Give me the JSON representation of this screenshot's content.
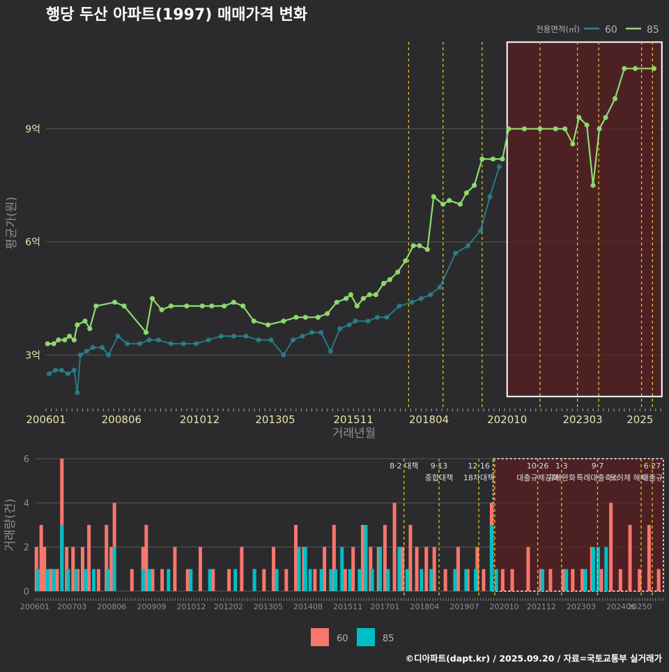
{
  "title": "행당 두산 아파트(1997) 매매가격 변화",
  "footer": "©디아파트(dapt.kr) / 2025.09.20 / 자료=국토교통부 실거래가",
  "colors": {
    "background": "#2b2b2d",
    "series60_line": "#2a8a96",
    "series85_line": "#8fdc6e",
    "bar60": "#f8766d",
    "bar85": "#00bfc4",
    "policy_line": "#e6c619",
    "highlight_fill": "#5a1f22",
    "title_text": "#ffffff",
    "axis_text": "#e8e2b0"
  },
  "chart_data": [
    {
      "type": "line",
      "title": "행당 두산 아파트(1997) 매매가격 변화",
      "xlabel": "거래년월",
      "ylabel": "평균가(원)",
      "x_ticks": [
        "200601",
        "200806",
        "201012",
        "201305",
        "201511",
        "201804",
        "202010",
        "202303",
        "2025"
      ],
      "y_ticks": [
        {
          "value": 3,
          "label": "3억"
        },
        {
          "value": 6,
          "label": "6억"
        },
        {
          "value": 9,
          "label": "9억"
        }
      ],
      "ylim": [
        1.6,
        11.4
      ],
      "xlim": [
        2006.0,
        2025.75
      ],
      "grid": true,
      "legend": {
        "title": "전용면적(㎡)",
        "position": "top-right",
        "entries": [
          "60",
          "85"
        ]
      },
      "highlight_range": {
        "x": [
          2020.75,
          2025.7
        ],
        "y": [
          1.9,
          11.3
        ]
      },
      "policy_dates": [
        2017.6,
        2018.7,
        2019.95,
        2021.8,
        2023.0,
        2023.68,
        2025.05,
        2025.4
      ],
      "series": [
        {
          "name": "85",
          "x": [
            2006.05,
            2006.25,
            2006.4,
            2006.6,
            2006.75,
            2006.9,
            2007.0,
            2007.25,
            2007.4,
            2007.6,
            2008.2,
            2008.5,
            2009.2,
            2009.4,
            2009.7,
            2010.0,
            2010.5,
            2011.0,
            2011.3,
            2011.7,
            2012.0,
            2012.3,
            2012.65,
            2013.1,
            2013.6,
            2014.0,
            2014.3,
            2014.7,
            2015.0,
            2015.3,
            2015.6,
            2015.75,
            2015.95,
            2016.15,
            2016.35,
            2016.55,
            2016.8,
            2017.0,
            2017.25,
            2017.5,
            2017.75,
            2017.95,
            2018.2,
            2018.4,
            2018.7,
            2018.9,
            2019.25,
            2019.45,
            2019.7,
            2019.95,
            2020.3,
            2020.6,
            2020.8,
            2021.3,
            2021.8,
            2022.3,
            2022.6,
            2022.85,
            2023.05,
            2023.3,
            2023.5,
            2023.7,
            2023.9,
            2024.2,
            2024.5,
            2024.85,
            2025.45
          ],
          "values": [
            3.3,
            3.3,
            3.4,
            3.4,
            3.5,
            3.4,
            3.8,
            3.9,
            3.7,
            4.3,
            4.4,
            4.3,
            3.6,
            4.5,
            4.2,
            4.3,
            4.3,
            4.3,
            4.3,
            4.3,
            4.4,
            4.3,
            3.9,
            3.8,
            3.9,
            4.0,
            4.0,
            4.0,
            4.1,
            4.4,
            4.5,
            4.6,
            4.3,
            4.5,
            4.6,
            4.6,
            4.9,
            5.0,
            5.2,
            5.5,
            5.9,
            5.9,
            5.8,
            7.2,
            7.0,
            7.1,
            7.0,
            7.3,
            7.5,
            8.2,
            8.2,
            8.2,
            9.0,
            9.0,
            9.0,
            9.0,
            9.0,
            8.6,
            9.3,
            9.1,
            7.5,
            9.0,
            9.3,
            9.8,
            10.6,
            10.6,
            10.6
          ]
        },
        {
          "name": "60",
          "x": [
            2006.1,
            2006.3,
            2006.5,
            2006.7,
            2006.9,
            2007.0,
            2007.1,
            2007.3,
            2007.5,
            2007.8,
            2008.0,
            2008.3,
            2008.6,
            2009.0,
            2009.3,
            2009.6,
            2010.0,
            2010.4,
            2010.8,
            2011.2,
            2011.6,
            2012.0,
            2012.4,
            2012.8,
            2013.2,
            2013.6,
            2013.9,
            2014.2,
            2014.5,
            2014.8,
            2015.1,
            2015.4,
            2015.7,
            2015.9,
            2016.3,
            2016.6,
            2016.9,
            2017.3,
            2017.7,
            2018.0,
            2018.3,
            2018.6,
            2019.1,
            2019.5,
            2019.9,
            2020.2,
            2020.5
          ],
          "values": [
            2.5,
            2.6,
            2.6,
            2.5,
            2.6,
            2.0,
            3.0,
            3.1,
            3.2,
            3.2,
            3.0,
            3.5,
            3.3,
            3.3,
            3.4,
            3.4,
            3.3,
            3.3,
            3.3,
            3.4,
            3.5,
            3.5,
            3.5,
            3.4,
            3.4,
            3.0,
            3.4,
            3.5,
            3.6,
            3.6,
            3.1,
            3.7,
            3.8,
            3.9,
            3.9,
            4.0,
            4.0,
            4.3,
            4.4,
            4.5,
            4.6,
            4.8,
            5.7,
            5.9,
            6.3,
            7.2,
            8.0
          ]
        }
      ]
    },
    {
      "type": "bar",
      "ylabel": "거래량(건)",
      "ylim": [
        0,
        6
      ],
      "y_ticks": [
        0,
        2,
        4,
        6
      ],
      "x_ticks": [
        "200601",
        "200703",
        "200806",
        "200909",
        "201012",
        "201202",
        "201305",
        "201408",
        "201511",
        "201701",
        "201804",
        "201907",
        "202010",
        "202112",
        "202303",
        "202406",
        "20250"
      ],
      "legend": {
        "position": "bottom",
        "entries": [
          "60",
          "85"
        ]
      },
      "highlight_range": {
        "x": [
          2020.4,
          2025.75
        ]
      },
      "policy_dates": [
        2017.6,
        2018.7,
        2019.95,
        2020.45,
        2021.8,
        2022.55,
        2023.68,
        2025.05,
        2025.4
      ],
      "annotations": [
        {
          "x": 2017.6,
          "line1": "8·2 대책",
          "line2": ""
        },
        {
          "x": 2018.7,
          "line1": "9·13",
          "line2": "종합대책"
        },
        {
          "x": 2019.95,
          "line1": "12·16",
          "line2": "18차대책"
        },
        {
          "x": 2021.8,
          "line1": "10·26",
          "line2": "대출규제강화"
        },
        {
          "x": 2022.55,
          "line1": "1·3",
          "line2": "규제완화"
        },
        {
          "x": 2023.68,
          "line1": "9·7",
          "line2": "특례대출축소"
        },
        {
          "x": 2024.65,
          "line1": "",
          "line2": "토허제 해제"
        },
        {
          "x": 2025.4,
          "line1": "6·27",
          "line2": "대출규"
        }
      ],
      "series": [
        {
          "name": "60",
          "x": [
            2006.05,
            2006.2,
            2006.3,
            2006.5,
            2006.7,
            2006.85,
            2007.0,
            2007.2,
            2007.35,
            2007.5,
            2007.7,
            2008.0,
            2008.25,
            2008.4,
            2008.5,
            2009.05,
            2009.4,
            2009.5,
            2009.7,
            2010.0,
            2010.4,
            2010.8,
            2011.2,
            2011.6,
            2012.1,
            2012.5,
            2012.9,
            2013.2,
            2013.5,
            2013.9,
            2014.2,
            2014.45,
            2014.8,
            2015.1,
            2015.4,
            2015.75,
            2016.0,
            2016.3,
            2016.55,
            2016.8,
            2017.0,
            2017.3,
            2017.55,
            2017.8,
            2018.0,
            2018.3,
            2018.55,
            2018.9,
            2019.3,
            2019.6,
            2019.9,
            2020.1,
            2020.35,
            2020.7,
            2021.0,
            2021.5,
            2021.9,
            2022.2,
            2022.6,
            2022.9,
            2023.2,
            2023.5,
            2023.8,
            2024.1,
            2024.4,
            2024.7,
            2025.0,
            2025.3,
            2025.6
          ],
          "values": [
            2,
            3,
            2,
            1,
            1,
            6,
            2,
            2,
            1,
            2,
            3,
            1,
            3,
            2,
            4,
            1,
            2,
            3,
            1,
            1,
            2,
            1,
            2,
            1,
            1,
            2,
            1,
            1,
            2,
            1,
            3,
            2,
            1,
            2,
            3,
            1,
            2,
            3,
            2,
            2,
            3,
            4,
            2,
            3,
            2,
            2,
            2,
            1,
            2,
            1,
            2,
            1,
            4,
            1,
            1,
            2,
            1,
            1,
            1,
            1,
            1,
            2,
            1,
            4,
            1,
            3,
            1,
            3,
            1
          ]
        },
        {
          "name": "85",
          "x": [
            2006.1,
            2006.4,
            2006.6,
            2006.85,
            2007.05,
            2007.3,
            2007.6,
            2007.85,
            2008.3,
            2008.5,
            2009.4,
            2009.6,
            2010.2,
            2010.9,
            2011.5,
            2012.3,
            2012.9,
            2013.6,
            2014.3,
            2014.5,
            2014.65,
            2015.0,
            2015.3,
            2015.45,
            2015.65,
            2015.9,
            2016.2,
            2016.4,
            2016.6,
            2016.85,
            2017.1,
            2017.45,
            2017.7,
            2018.15,
            2018.45,
            2019.2,
            2019.55,
            2019.85,
            2020.35,
            2020.5,
            2021.95,
            2022.7,
            2023.3,
            2023.55,
            2023.7,
            2023.95
          ],
          "values": [
            1,
            1,
            1,
            3,
            1,
            1,
            1,
            1,
            1,
            2,
            1,
            1,
            1,
            1,
            1,
            1,
            1,
            1,
            2,
            2,
            1,
            1,
            1,
            1,
            2,
            1,
            1,
            3,
            1,
            2,
            1,
            2,
            1,
            1,
            1,
            1,
            1,
            1,
            3,
            1,
            1,
            1,
            1,
            2,
            2,
            2
          ]
        }
      ]
    }
  ]
}
